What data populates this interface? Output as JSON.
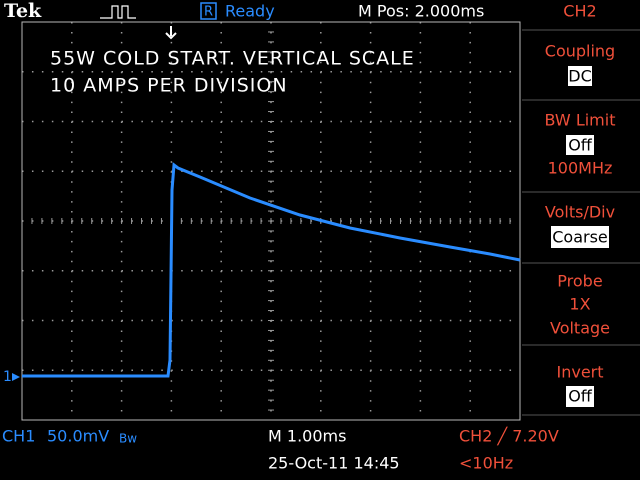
{
  "header": {
    "brand": "Tek",
    "status_icon": "R",
    "status": "Ready",
    "position": "M Pos: 2.000ms",
    "channel": "CH2"
  },
  "annotation": [
    "55W COLD START. VERTICAL SCALE",
    "10 AMPS PER DIVISION"
  ],
  "ground_marker": "1",
  "menu": [
    {
      "label": "Coupling",
      "value": "DC"
    },
    {
      "label": "BW Limit",
      "value": "Off",
      "note": "100MHz"
    },
    {
      "label": "Volts/Div",
      "value": "Coarse"
    },
    {
      "label": "Probe",
      "lines": [
        "1X",
        "Voltage"
      ]
    },
    {
      "label": "Invert",
      "value": "Off"
    }
  ],
  "footer": {
    "ch1": "CH1",
    "ch1_scale": "50.0mV",
    "ch1_bw": "Bw",
    "timebase": "M 1.00ms",
    "datetime": "25-Oct-11 14:45",
    "trigger": "CH2 ╱ 7.20V",
    "frequency": "<10Hz"
  }
}
